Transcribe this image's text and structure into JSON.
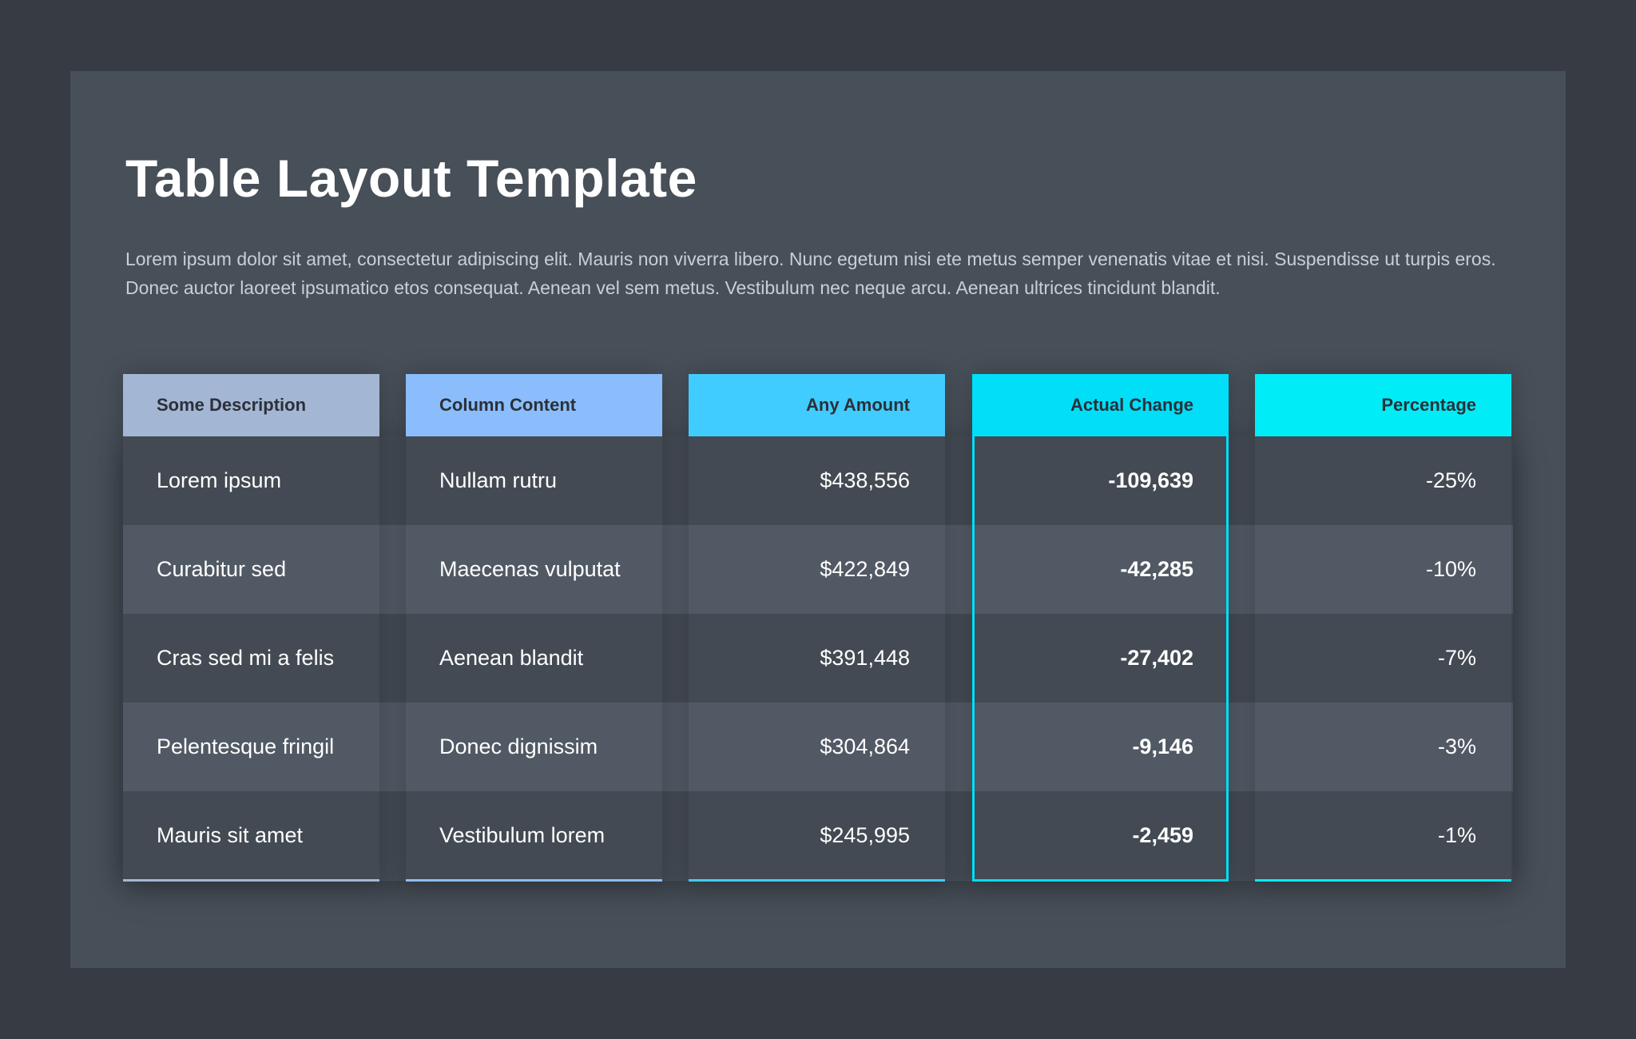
{
  "title": "Table Layout Template",
  "description": "Lorem ipsum dolor sit amet, consectetur adipiscing elit. Mauris non viverra libero. Nunc egetum nisi ete metus semper venenatis vitae et nisi. Suspendisse ut turpis eros. Donec auctor laoreet ipsumatico etos consequat. Aenean vel sem metus. Vestibulum nec neque arcu. Aenean ultrices tincidunt blandit.",
  "colors": {
    "background": "#363b44",
    "card": "#474f58",
    "row_dark": "#434a53",
    "row_light": "#515964",
    "header_text": "#2b3038",
    "col1_accent": "#a3b6d4",
    "col2_accent": "#8bbdfc",
    "col3_accent": "#41ccff",
    "col4_accent": "#00def8",
    "col5_accent": "#00edf8"
  },
  "table": {
    "headers": [
      "Some Description",
      "Column Content",
      "Any Amount",
      "Actual Change",
      "Percentage"
    ],
    "highlighted_column": "Actual Change",
    "rows": [
      [
        "Lorem ipsum",
        "Nullam rutru",
        "$438,556",
        "-109,639",
        "-25%"
      ],
      [
        "Curabitur sed",
        "Maecenas vulputat",
        "$422,849",
        "-42,285",
        "-10%"
      ],
      [
        "Cras sed mi a felis",
        "Aenean blandit",
        "$391,448",
        "-27,402",
        "-7%"
      ],
      [
        "Pelentesque fringil",
        "Donec dignissim",
        "$304,864",
        "-9,146",
        "-3%"
      ],
      [
        "Mauris sit amet",
        "Vestibulum lorem",
        "$245,995",
        "-2,459",
        "-1%"
      ]
    ]
  }
}
